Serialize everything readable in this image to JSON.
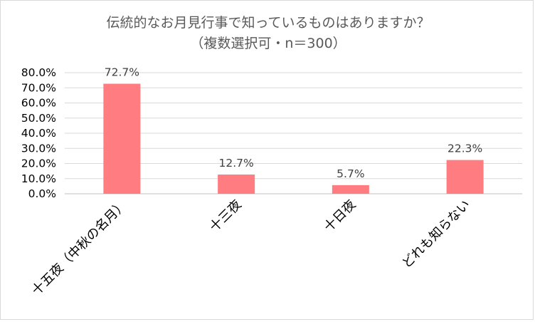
{
  "chart_data": {
    "type": "bar",
    "title": "伝統的なお月見行事で知っているものはありますか？",
    "subtitle": "（複数選択可・n＝300）",
    "categories": [
      "十五夜（中秋の名月）",
      "十三夜",
      "十日夜",
      "どれも知らない"
    ],
    "values": [
      72.7,
      12.7,
      5.7,
      22.3
    ],
    "data_labels": [
      "72.7%",
      "12.7%",
      "5.7%",
      "22.3%"
    ],
    "y_ticks": [
      "0.0%",
      "10.0%",
      "20.0%",
      "30.0%",
      "40.0%",
      "50.0%",
      "60.0%",
      "70.0%",
      "80.0%"
    ],
    "ylim": [
      0,
      80
    ],
    "xlabel": "",
    "ylabel": "",
    "grid": true,
    "legend": "none",
    "bar_color": "#ff7c80",
    "grid_color": "#d9d9d9"
  }
}
